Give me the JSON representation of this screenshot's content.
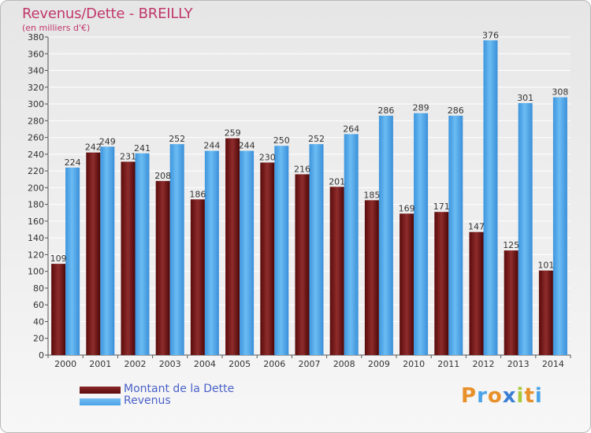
{
  "title": "Revenus/Dette - BREILLY",
  "subtitle": "(en milliers d'€)",
  "colors": {
    "dette": "#7a1c1c",
    "revenus": "#4aa3e8",
    "axis_text": "#333333",
    "title": "#c0386b",
    "legend_text": "#4a61c8"
  },
  "legend": [
    {
      "label": "Montant de la Dette",
      "color": "#5a0a0a"
    },
    {
      "label": "Revenus",
      "color": "#4aa3e8"
    }
  ],
  "logo": {
    "text": "Proxiti",
    "letters": [
      {
        "ch": "P",
        "color": "#e8902a"
      },
      {
        "ch": "r",
        "color": "#4aa3e8"
      },
      {
        "ch": "o",
        "color": "#e8902a"
      },
      {
        "ch": "x",
        "color": "#3b7fd4"
      },
      {
        "ch": "i",
        "color": "#a8c93a"
      },
      {
        "ch": "t",
        "color": "#e8902a"
      },
      {
        "ch": "i",
        "color": "#4aa3e8"
      }
    ]
  },
  "chart_data": {
    "type": "bar",
    "title": "Revenus/Dette - BREILLY",
    "subtitle": "(en milliers d'€)",
    "categories": [
      "2000",
      "2001",
      "2002",
      "2003",
      "2004",
      "2005",
      "2006",
      "2007",
      "2008",
      "2009",
      "2010",
      "2011",
      "2012",
      "2013",
      "2014"
    ],
    "series": [
      {
        "name": "Montant de la Dette",
        "values": [
          109,
          242,
          231,
          208,
          186,
          259,
          230,
          216,
          201,
          185,
          169,
          171,
          147,
          125,
          101
        ]
      },
      {
        "name": "Revenus",
        "values": [
          224,
          249,
          241,
          252,
          244,
          244,
          250,
          252,
          264,
          286,
          289,
          286,
          376,
          301,
          308
        ]
      }
    ],
    "ylim": [
      0,
      380
    ],
    "ytick_step": 20,
    "grid": true,
    "legend_position": "bottom-left"
  }
}
